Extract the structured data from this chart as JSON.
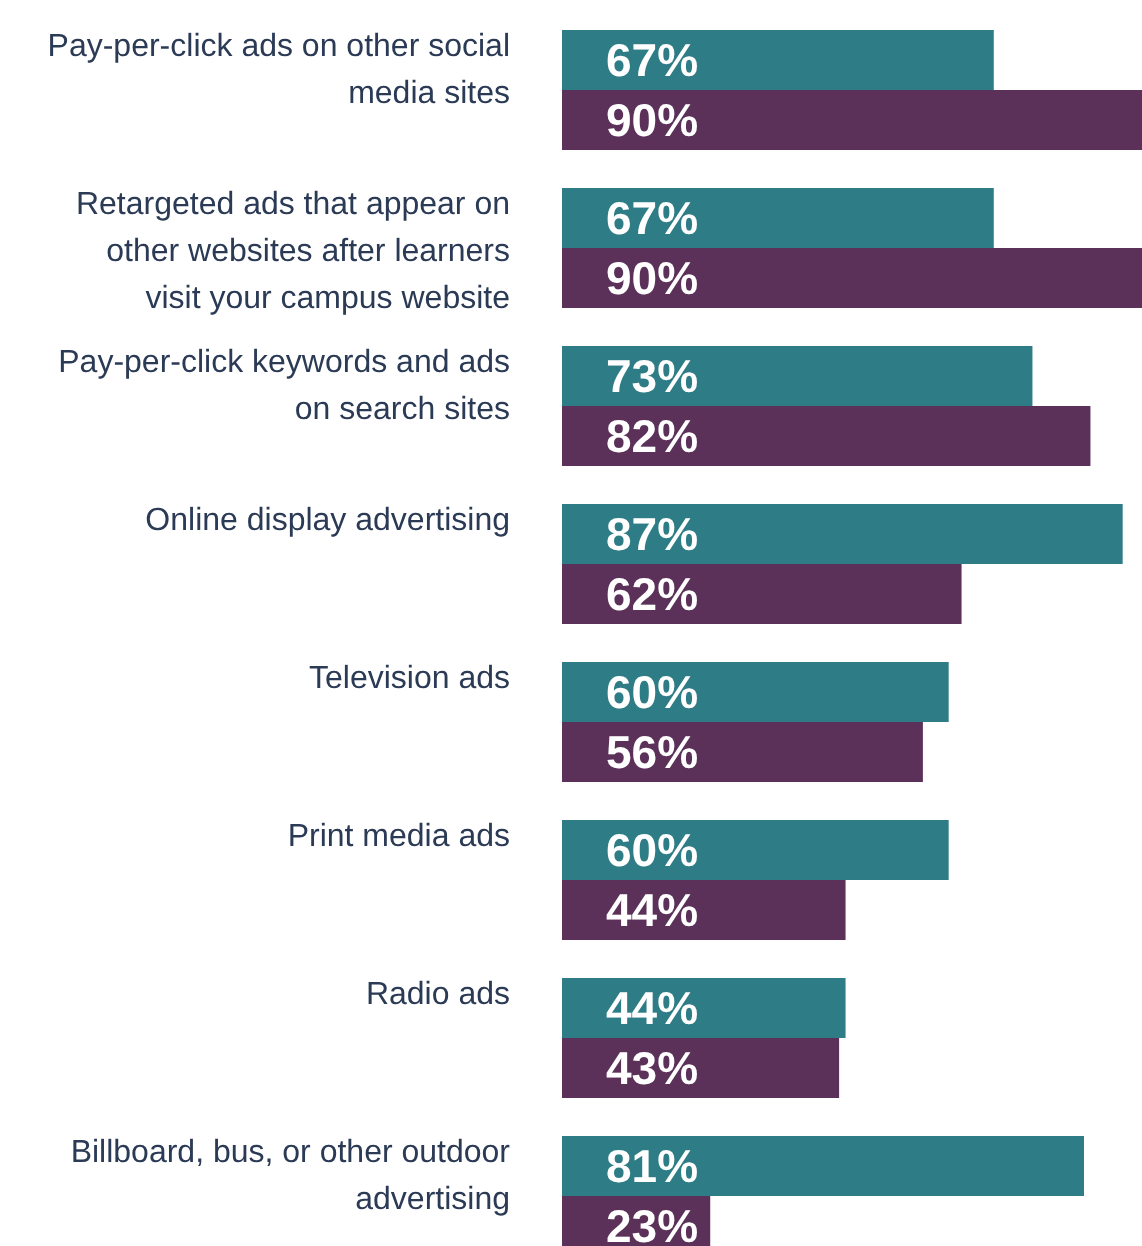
{
  "chart_data": {
    "type": "bar",
    "orientation": "horizontal",
    "categories": [
      "Pay-per-click ads on other social media sites",
      "Retargeted ads that appear on other websites after learners visit your campus website",
      "Pay-per-click keywords and ads on search sites",
      "Online display advertising",
      "Television ads",
      "Print media ads",
      "Radio ads",
      "Billboard, bus, or other outdoor advertising"
    ],
    "series": [
      {
        "color": "#2e7d86",
        "values": [
          67,
          67,
          73,
          87,
          60,
          60,
          44,
          81
        ],
        "value_labels": [
          "67%",
          "67%",
          "73%",
          "87%",
          "60%",
          "60%",
          "44%",
          "81%"
        ]
      },
      {
        "color": "#5b315a",
        "values": [
          90,
          90,
          82,
          62,
          56,
          44,
          43,
          23
        ],
        "value_labels": [
          "90%",
          "90%",
          "82%",
          "62%",
          "56%",
          "44%",
          "43%",
          "23%"
        ]
      }
    ]
  }
}
